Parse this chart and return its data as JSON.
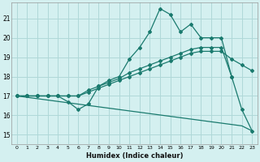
{
  "xlabel": "Humidex (Indice chaleur)",
  "ylabel": "",
  "bg_color": "#d4f0f0",
  "grid_color": "#afd8d8",
  "line_color": "#1a7a6e",
  "xlim": [
    -0.5,
    23.5
  ],
  "ylim": [
    14.5,
    21.8
  ],
  "xticks": [
    0,
    1,
    2,
    3,
    4,
    5,
    6,
    7,
    8,
    9,
    10,
    11,
    12,
    13,
    14,
    15,
    16,
    17,
    18,
    19,
    20,
    21,
    22,
    23
  ],
  "yticks": [
    15,
    16,
    17,
    18,
    19,
    20,
    21
  ],
  "line1_x": [
    0,
    1,
    2,
    3,
    4,
    5,
    6,
    7,
    8,
    9,
    10,
    11,
    12,
    13,
    14,
    15,
    16,
    17,
    18,
    19,
    20,
    21,
    22,
    23
  ],
  "line1_y": [
    17.0,
    17.0,
    17.0,
    17.0,
    17.0,
    16.7,
    16.3,
    16.6,
    17.5,
    17.8,
    18.0,
    18.9,
    19.5,
    20.3,
    21.5,
    21.2,
    20.3,
    20.7,
    20.0,
    20.0,
    20.0,
    18.0,
    16.3,
    15.2
  ],
  "line2_x": [
    0,
    1,
    2,
    3,
    4,
    5,
    6,
    7,
    8,
    9,
    10,
    11,
    12,
    13,
    14,
    15,
    16,
    17,
    18,
    19,
    20,
    21
  ],
  "line2_y": [
    17.0,
    17.0,
    17.0,
    17.0,
    17.0,
    17.0,
    17.0,
    17.3,
    17.5,
    17.7,
    17.9,
    18.2,
    18.4,
    18.6,
    18.8,
    19.0,
    19.2,
    19.4,
    19.5,
    19.5,
    19.5,
    18.0
  ],
  "line3_x": [
    0,
    1,
    2,
    3,
    4,
    5,
    6,
    7,
    8,
    9,
    10,
    11,
    12,
    13,
    14,
    15,
    16,
    17,
    18,
    19,
    20,
    21,
    22,
    23
  ],
  "line3_y": [
    17.0,
    16.93,
    16.86,
    16.79,
    16.72,
    16.65,
    16.58,
    16.51,
    16.44,
    16.37,
    16.3,
    16.23,
    16.16,
    16.09,
    16.02,
    15.95,
    15.88,
    15.81,
    15.74,
    15.67,
    15.6,
    15.53,
    15.46,
    15.2
  ],
  "line4_x": [
    0,
    1,
    2,
    3,
    4,
    5,
    6,
    7,
    8,
    9,
    10,
    11,
    12,
    13,
    14,
    15,
    16,
    17,
    18,
    19,
    20,
    21,
    22,
    23
  ],
  "line4_y": [
    17.0,
    17.0,
    17.0,
    17.0,
    17.0,
    17.0,
    17.0,
    17.2,
    17.4,
    17.6,
    17.8,
    18.0,
    18.2,
    18.4,
    18.6,
    18.8,
    19.0,
    19.2,
    19.3,
    19.3,
    19.3,
    18.9,
    18.6,
    18.3
  ]
}
